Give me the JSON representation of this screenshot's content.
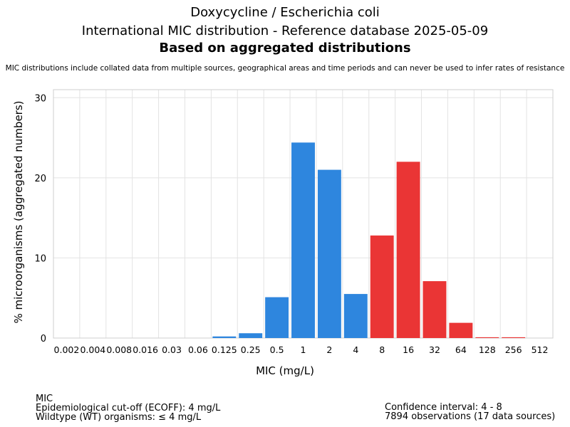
{
  "header": {
    "title_line1": "Doxycycline / Escherichia coli",
    "title_line2": "International MIC distribution - Reference database 2025-05-09",
    "title_line3": "Based on aggregated distributions",
    "note": "MIC distributions include collated data from multiple sources, geographical areas and time periods and can never be used to infer rates of resistance"
  },
  "chart_data": {
    "type": "bar",
    "categories": [
      "0.002",
      "0.004",
      "0.008",
      "0.016",
      "0.03",
      "0.06",
      "0.125",
      "0.25",
      "0.5",
      "1",
      "2",
      "4",
      "8",
      "16",
      "32",
      "64",
      "128",
      "256",
      "512"
    ],
    "values": [
      0,
      0,
      0,
      0,
      0,
      0,
      0.2,
      0.6,
      5.1,
      24.4,
      21.0,
      5.5,
      12.8,
      22.0,
      7.1,
      1.9,
      0.1,
      0.1,
      0
    ],
    "colors_by_category": [
      "#2e86de",
      "#2e86de",
      "#2e86de",
      "#2e86de",
      "#2e86de",
      "#2e86de",
      "#2e86de",
      "#2e86de",
      "#2e86de",
      "#2e86de",
      "#2e86de",
      "#2e86de",
      "#ea3535",
      "#ea3535",
      "#ea3535",
      "#ea3535",
      "#ea3535",
      "#ea3535",
      "#ea3535"
    ],
    "wt_color": "#2e86de",
    "nwt_color": "#ea3535",
    "xlabel": "MIC (mg/L)",
    "ylabel": "% microorganisms (aggregated numbers)",
    "ylim": [
      0,
      31
    ],
    "yticks": [
      0,
      10,
      20,
      30
    ],
    "grid": true
  },
  "footer": {
    "left": {
      "line1": "MIC",
      "line2": "Epidemiological cut-off (ECOFF): 4 mg/L",
      "line3": "Wildtype (WT) organisms: ≤ 4 mg/L"
    },
    "right": {
      "line1": "Confidence interval: 4 - 8",
      "line2": "7894 observations (17 data sources)"
    }
  }
}
